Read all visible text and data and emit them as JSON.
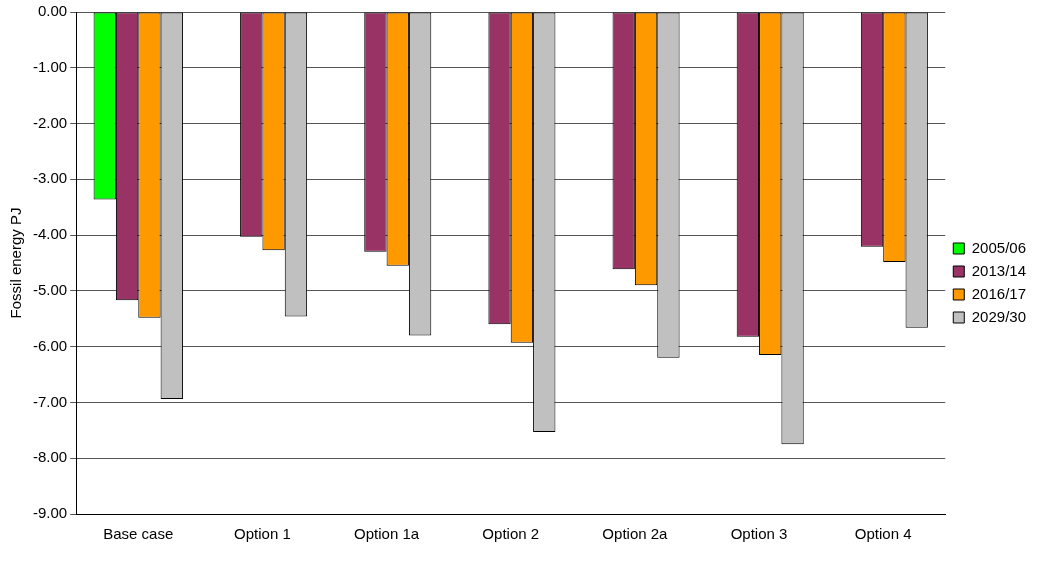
{
  "chart_data": {
    "type": "bar",
    "ylabel": "Fossil energy PJ",
    "categories": [
      "Base case",
      "Option 1",
      "Option 1a",
      "Option 2",
      "Option 2a",
      "Option 3",
      "Option 4"
    ],
    "series": [
      {
        "name": "2005/06",
        "color": "#00ff00",
        "values": [
          -3.36,
          null,
          null,
          null,
          null,
          null,
          null
        ]
      },
      {
        "name": "2013/14",
        "color": "#993366",
        "values": [
          -5.17,
          -4.03,
          -4.3,
          -5.6,
          -4.61,
          -5.82,
          -4.21
        ]
      },
      {
        "name": "2016/17",
        "color": "#ff9900",
        "values": [
          -5.48,
          -4.27,
          -4.55,
          -5.93,
          -4.9,
          -6.15,
          -4.48
        ]
      },
      {
        "name": "2029/30",
        "color": "#c0c0c0",
        "values": [
          -6.94,
          -5.46,
          -5.8,
          -7.53,
          -6.2,
          -7.75,
          -5.66
        ]
      }
    ],
    "ylim": [
      -9,
      0
    ],
    "yticks": [
      {
        "value": -9,
        "label": "-9.00"
      },
      {
        "value": -8,
        "label": "-8.00"
      },
      {
        "value": -7,
        "label": "-7.00"
      },
      {
        "value": -6,
        "label": "-6.00"
      },
      {
        "value": -5,
        "label": "-5.00"
      },
      {
        "value": -4,
        "label": "-4.00"
      },
      {
        "value": -3,
        "label": "-3.00"
      },
      {
        "value": -2,
        "label": "-2.00"
      },
      {
        "value": -1,
        "label": "-1.00"
      },
      {
        "value": 0,
        "label": "0.00"
      }
    ],
    "grid": "y",
    "legend": "right"
  }
}
